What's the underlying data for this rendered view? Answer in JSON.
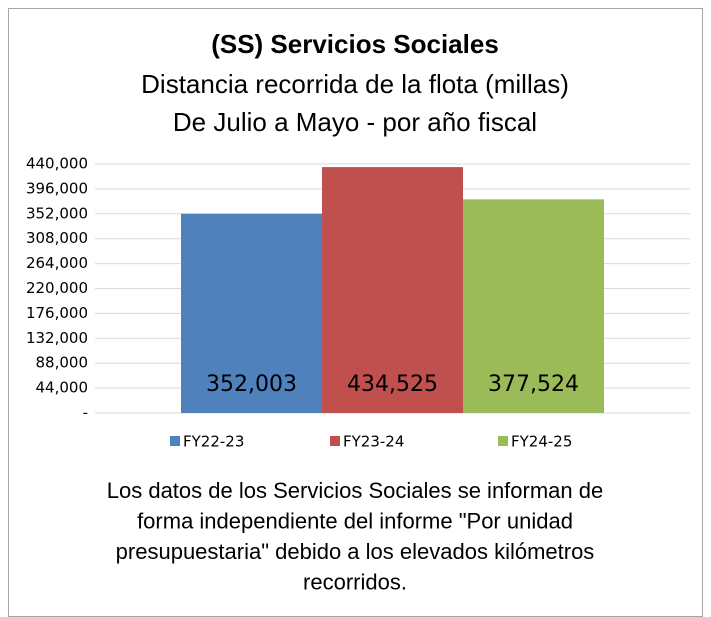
{
  "chart_data": {
    "type": "bar",
    "title": "(SS) Servicios Sociales",
    "subtitle": [
      "Distancia recorrida de la flota (millas)",
      "De Julio a Mayo - por año fiscal"
    ],
    "categories": [
      null
    ],
    "series": [
      {
        "name": "FY22-23",
        "color": "#4f81bd",
        "values": [
          352003
        ],
        "value_labels": [
          "352,003"
        ]
      },
      {
        "name": "FY23-24",
        "color": "#c0504d",
        "values": [
          434525
        ],
        "value_labels": [
          "434,525"
        ]
      },
      {
        "name": "FY24-25",
        "color": "#9bbb59",
        "values": [
          377524
        ],
        "value_labels": [
          "377,524"
        ]
      }
    ],
    "ylim": [
      0,
      440000
    ],
    "yticks": [
      {
        "value": 0,
        "label": "-"
      },
      {
        "value": 44000,
        "label": "44,000"
      },
      {
        "value": 88000,
        "label": "88,000"
      },
      {
        "value": 132000,
        "label": "132,000"
      },
      {
        "value": 176000,
        "label": "176,000"
      },
      {
        "value": 220000,
        "label": "220,000"
      },
      {
        "value": 264000,
        "label": "264,000"
      },
      {
        "value": 308000,
        "label": "308,000"
      },
      {
        "value": 352000,
        "label": "352,000"
      },
      {
        "value": 396000,
        "label": "396,000"
      },
      {
        "value": 440000,
        "label": "440,000"
      }
    ],
    "grid": true,
    "legend": "bottom",
    "annotation": [
      "Los datos de los Servicios Sociales se informan de",
      "forma independiente del informe \"Por unidad",
      "presupuestaria\" debido a los elevados kilómetros",
      "recorridos."
    ]
  }
}
